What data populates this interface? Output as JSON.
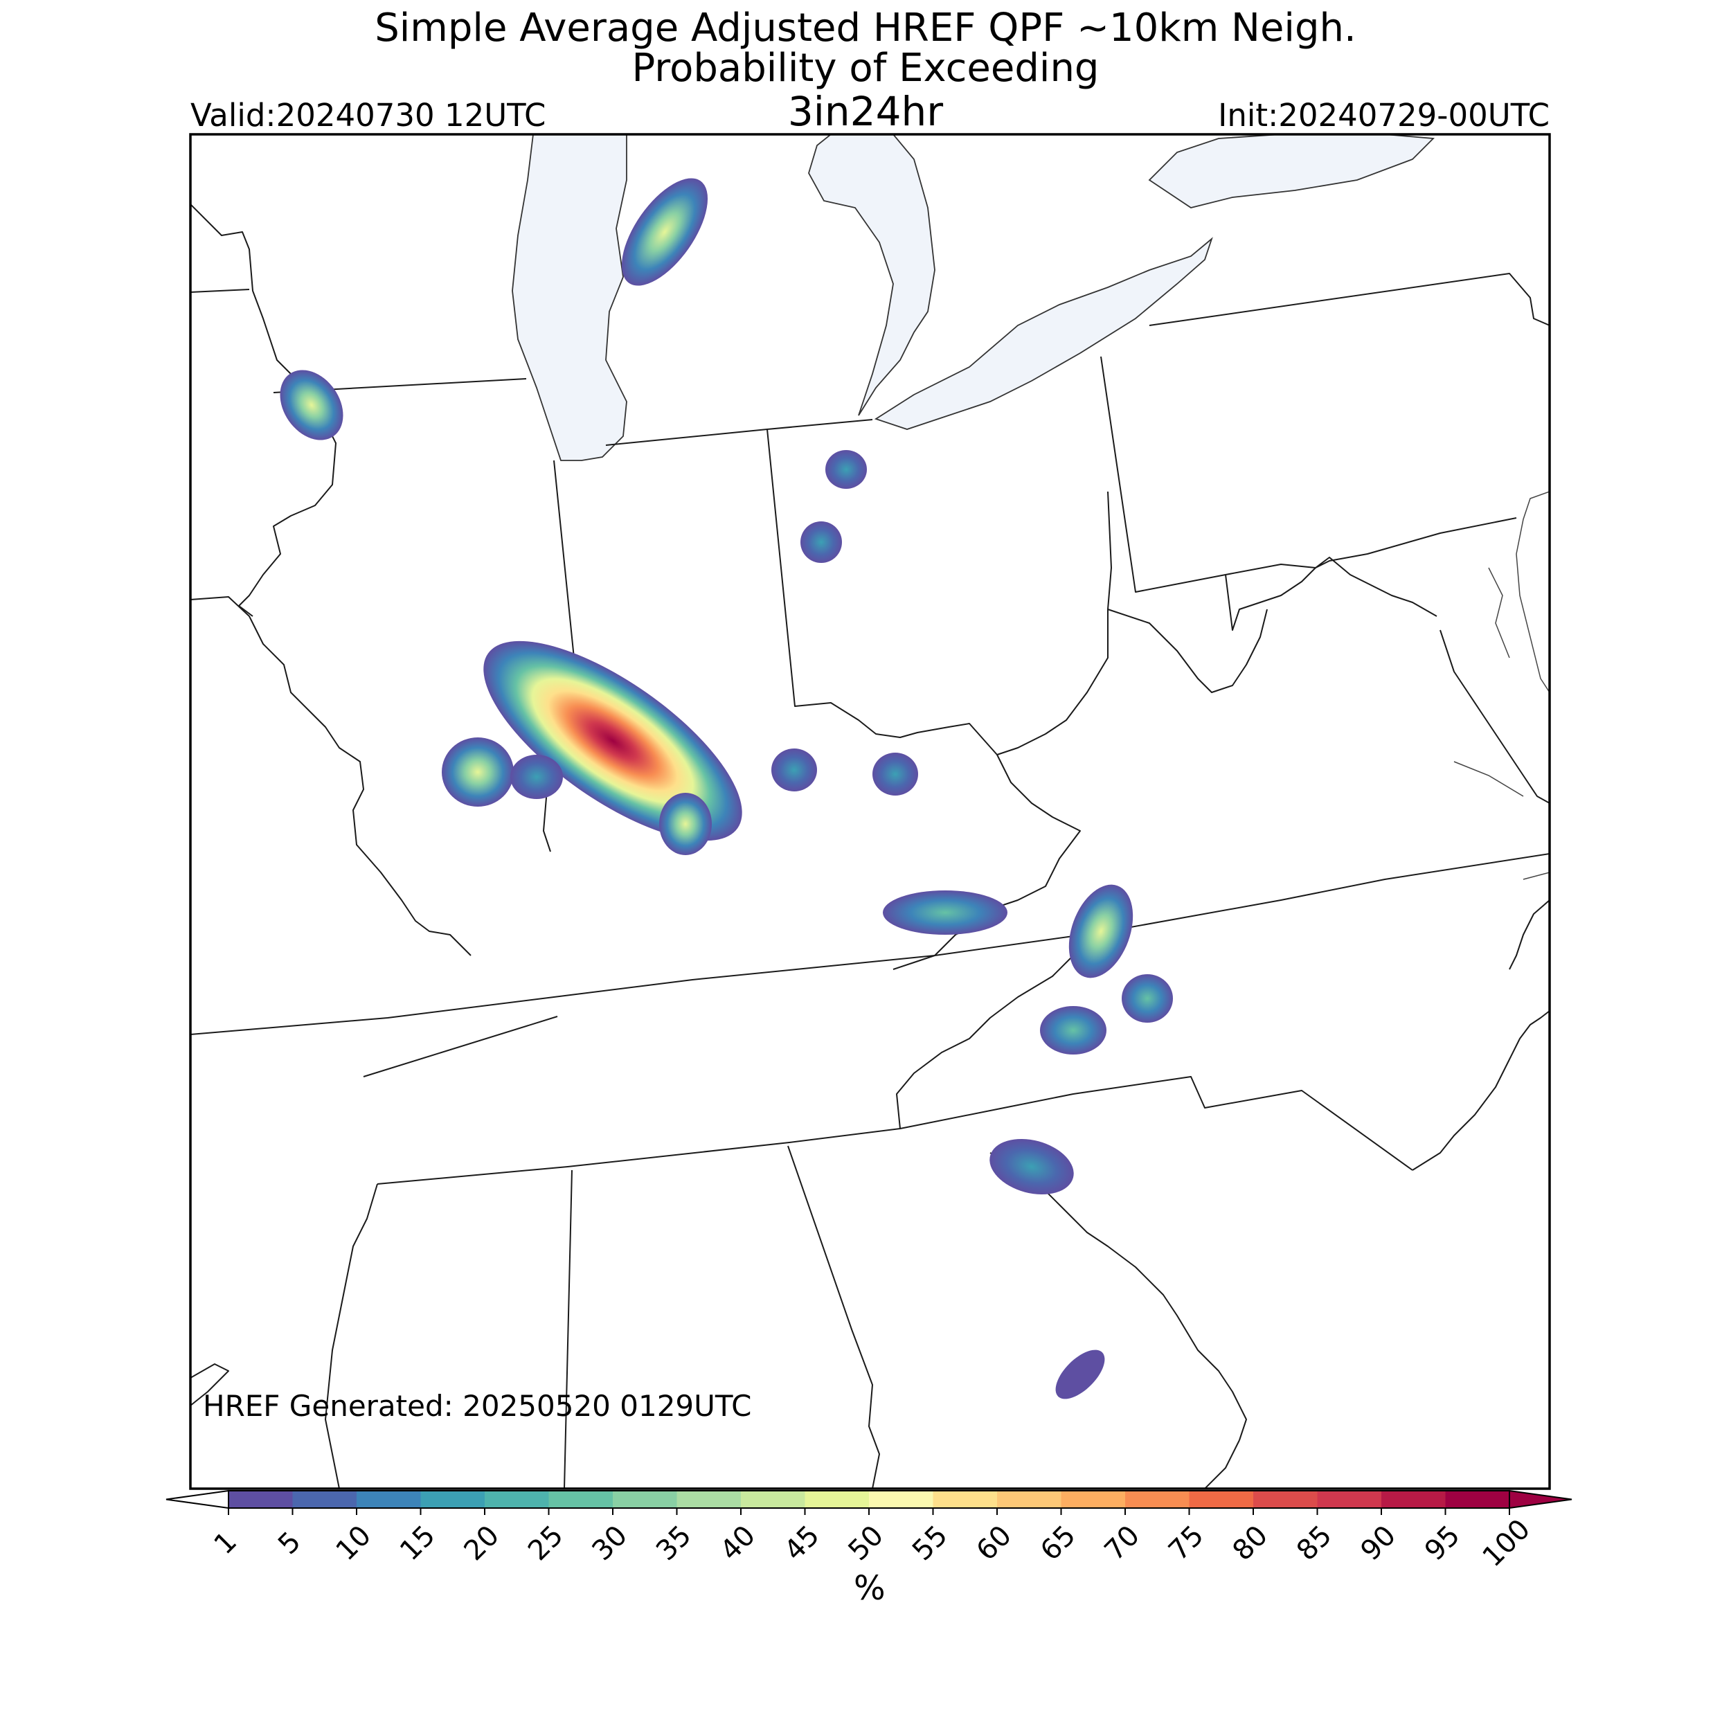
{
  "header": {
    "title_line1": "Simple Average Adjusted HREF QPF ~10km Neigh.",
    "title_line2": "Probability of Exceeding",
    "title_line3": "3in24hr",
    "valid": "Valid:20240730 12UTC",
    "init": "Init:20240729-00UTC"
  },
  "map": {
    "generated_label": "HREF Generated: 20250520 0129UTC",
    "water_color": "#f0f4fa",
    "border_color": "#222222",
    "blobs": [
      {
        "region": "northern Illinois / Wisconsin border",
        "max_pct": 40
      },
      {
        "region": "Lake Michigan east shore",
        "max_pct": 35
      },
      {
        "region": "southwest Indiana / southern Illinois",
        "max_pct": 100
      },
      {
        "region": "western Illinois",
        "max_pct": 50
      },
      {
        "region": "north-central Indiana",
        "max_pct": 15
      },
      {
        "region": "central Indiana",
        "max_pct": 15
      },
      {
        "region": "northern Kentucky",
        "max_pct": 15
      },
      {
        "region": "eastern Kentucky",
        "max_pct": 30
      },
      {
        "region": "southwest Virginia",
        "max_pct": 45
      },
      {
        "region": "northwest North Carolina",
        "max_pct": 30
      },
      {
        "region": "western South Carolina",
        "max_pct": 20
      },
      {
        "region": "southern South Carolina",
        "max_pct": 5
      }
    ]
  },
  "colorbar": {
    "unit": "%",
    "ticks": [
      "1",
      "5",
      "10",
      "15",
      "20",
      "25",
      "30",
      "35",
      "40",
      "45",
      "50",
      "55",
      "60",
      "65",
      "70",
      "75",
      "80",
      "85",
      "90",
      "95",
      "100"
    ],
    "colors": [
      "#5e4fa2",
      "#4b67ae",
      "#3d84b9",
      "#3ca0b4",
      "#4eb3ad",
      "#66c2a5",
      "#89d0a4",
      "#abdda4",
      "#c9e99e",
      "#e6f598",
      "#fbf9b0",
      "#fee08b",
      "#fdc877",
      "#fdae61",
      "#f88d52",
      "#ef6a45",
      "#dc4c4b",
      "#d0384e",
      "#b71a46",
      "#9e0142"
    ]
  }
}
